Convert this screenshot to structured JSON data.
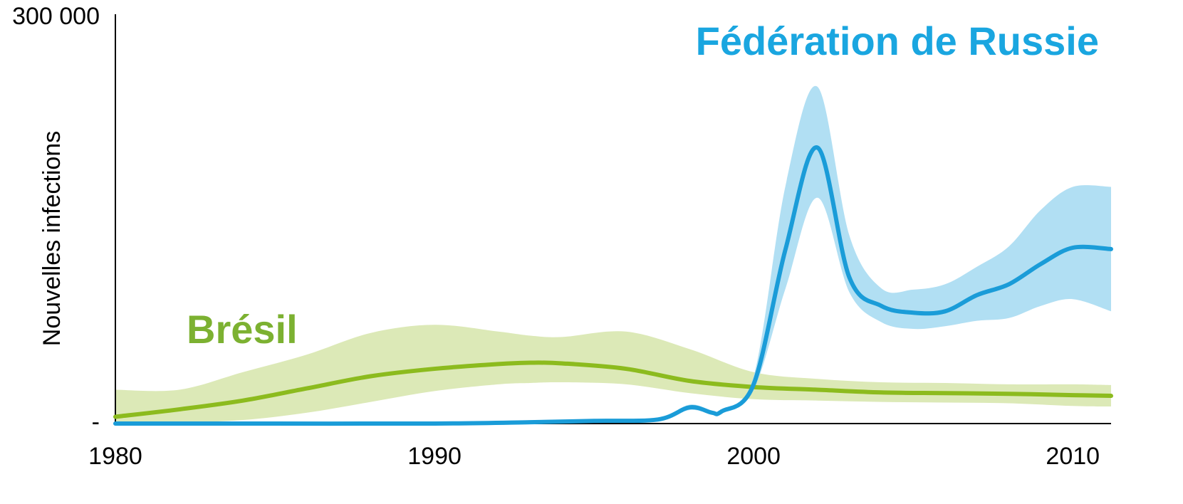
{
  "chart_data": {
    "type": "line",
    "ylabel": "Nouvelles infections",
    "xlim": [
      1980,
      2011.2
    ],
    "ylim": [
      0,
      300000
    ],
    "xticks": [
      1980,
      1990,
      2000,
      2010
    ],
    "yticks": [
      {
        "value": 0,
        "label": "-"
      },
      {
        "value": 300000,
        "label": "300 000"
      }
    ],
    "series": [
      {
        "name": "Brésil",
        "color": "#8cbb1e",
        "band_color": "#dce9b7",
        "x": [
          1980,
          1982,
          1984,
          1986,
          1988,
          1990,
          1992,
          1993,
          1994,
          1996,
          1998,
          2000,
          2002,
          2004,
          2006,
          2008,
          2010,
          2011.2
        ],
        "values": [
          5000,
          10500,
          17000,
          26000,
          35000,
          40500,
          44000,
          45000,
          44500,
          40500,
          31500,
          27000,
          25000,
          23000,
          22500,
          22000,
          21000,
          20500
        ],
        "upper": [
          25000,
          25000,
          38000,
          51000,
          67000,
          73000,
          68000,
          65000,
          64000,
          68000,
          55000,
          38000,
          33000,
          30500,
          30000,
          29000,
          29000,
          28500
        ],
        "lower": [
          0,
          800,
          2600,
          8000,
          16000,
          24000,
          29000,
          30000,
          30500,
          29000,
          22500,
          18000,
          17000,
          16000,
          15500,
          15000,
          13000,
          12600
        ]
      },
      {
        "name": "Fédération de Russie",
        "color": "#1a9cd8",
        "band_color": "#b1dff3",
        "x": [
          1980,
          1985,
          1990,
          1993,
          1995,
          1997,
          1998,
          1998.7,
          1999,
          2000,
          2001,
          2002,
          2003,
          2004,
          2005,
          2006,
          2007,
          2008,
          2009,
          2010,
          2011.2
        ],
        "values": [
          0,
          0,
          0,
          1000,
          2000,
          3000,
          12000,
          8000,
          9000,
          29000,
          129000,
          204000,
          108000,
          87000,
          82000,
          83000,
          95000,
          103000,
          118000,
          130000,
          129000
        ],
        "upper": [
          500,
          500,
          500,
          1500,
          2500,
          4000,
          14000,
          9500,
          10500,
          35000,
          176000,
          249000,
          139000,
          100000,
          99000,
          103000,
          116000,
          131000,
          158000,
          175000,
          175000
        ],
        "lower": [
          0,
          0,
          0,
          500,
          1500,
          2500,
          10000,
          7000,
          7500,
          25000,
          100000,
          167000,
          97000,
          75000,
          70000,
          72000,
          76000,
          78000,
          87000,
          92000,
          83000
        ]
      }
    ]
  }
}
